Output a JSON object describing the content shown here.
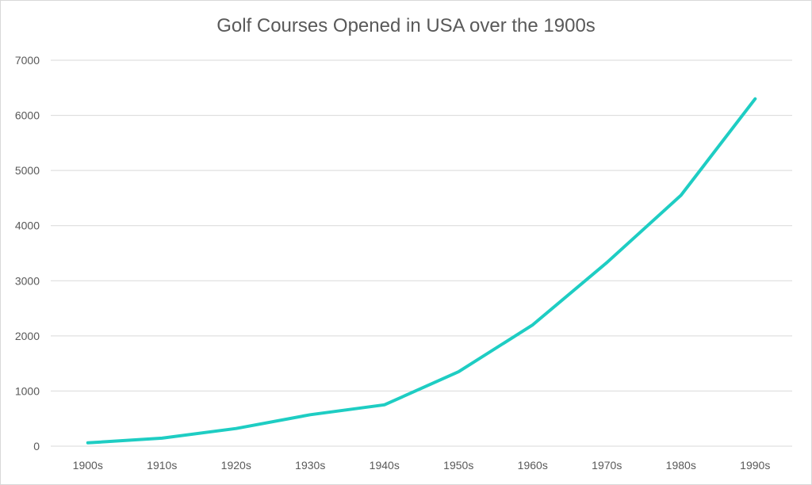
{
  "chart_data": {
    "type": "line",
    "title": "Golf Courses Opened in USA over the 1900s",
    "xlabel": "",
    "ylabel": "",
    "categories": [
      "1900s",
      "1910s",
      "1920s",
      "1930s",
      "1940s",
      "1950s",
      "1960s",
      "1970s",
      "1980s",
      "1990s"
    ],
    "series": [
      {
        "values": [
          60,
          145,
          320,
          570,
          750,
          1350,
          2200,
          3330,
          4550,
          6300
        ],
        "color": "#1ecdc3"
      }
    ],
    "ylim": [
      0,
      7000
    ],
    "yticks": [
      "0",
      "1000",
      "2000",
      "3000",
      "4000",
      "5000",
      "6000",
      "7000"
    ],
    "grid": true,
    "legend": "none"
  }
}
